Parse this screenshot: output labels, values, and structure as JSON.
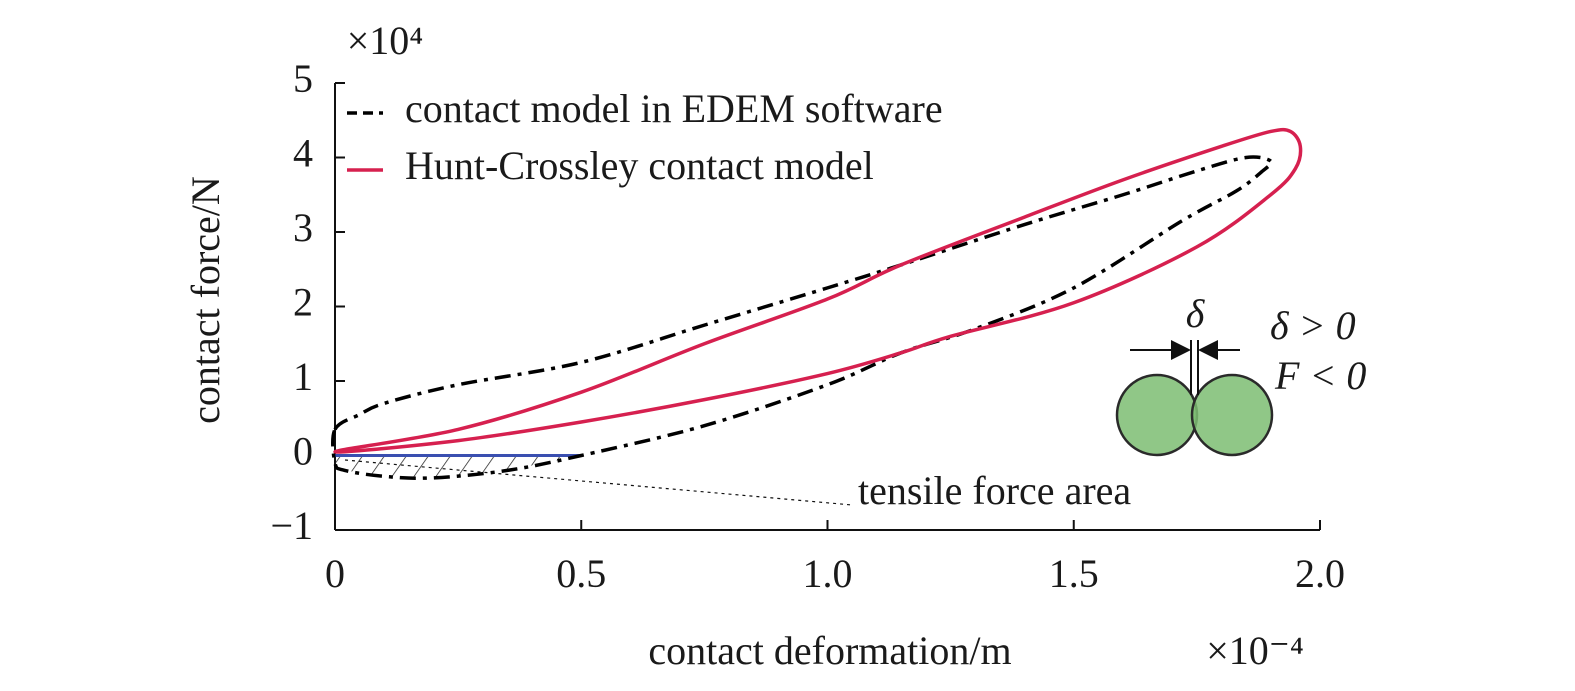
{
  "chart_data": {
    "type": "line",
    "x_label": "contact deformation/m",
    "y_label": "contact force/N",
    "x_multiplier": "×10⁻⁴",
    "y_multiplier": "×10⁴",
    "xlim": [
      0,
      2
    ],
    "ylim": [
      -1,
      5
    ],
    "xticks": [
      0,
      0.5,
      {
        "value": 1,
        "label": "1.0"
      },
      1.5,
      {
        "value": 2,
        "label": "2.0"
      }
    ],
    "yticks": [
      {
        "value": -1,
        "label": "−1"
      },
      0,
      1,
      2,
      3,
      4,
      5
    ],
    "grid": false,
    "legend": "top-left",
    "series": [
      {
        "name": "contact model in EDEM software",
        "color": "#000000",
        "style": "dashdot",
        "x": [
          0,
          0.05,
          0.1,
          0.25,
          0.5,
          0.75,
          1.0,
          1.15,
          1.4,
          1.6,
          1.75,
          1.85,
          1.9,
          1.88,
          1.83,
          1.72,
          1.5,
          1.3,
          1.15,
          1.0,
          0.75,
          0.5,
          0.35,
          0.2,
          0.1,
          0.02,
          0
        ],
        "values": [
          0.35,
          0.55,
          0.7,
          0.95,
          1.25,
          1.75,
          2.25,
          2.56,
          3.1,
          3.5,
          3.82,
          4.0,
          3.95,
          3.8,
          3.55,
          3.15,
          2.25,
          1.7,
          1.38,
          0.95,
          0.4,
          0.0,
          -0.2,
          -0.3,
          -0.28,
          -0.2,
          -0.1
        ]
      },
      {
        "name": "Hunt-Crossley contact model",
        "color": "#d6204f",
        "style": "solid",
        "x": [
          0,
          0.25,
          0.5,
          0.75,
          1.0,
          1.15,
          1.4,
          1.6,
          1.8,
          1.9,
          1.94,
          1.96,
          1.95,
          1.9,
          1.75,
          1.5,
          1.25,
          1.15,
          1.0,
          0.75,
          0.5,
          0.25
        ],
        "values": [
          0.05,
          0.35,
          0.85,
          1.5,
          2.1,
          2.56,
          3.2,
          3.7,
          4.15,
          4.35,
          4.35,
          4.15,
          3.85,
          3.5,
          2.8,
          2.05,
          1.6,
          1.38,
          1.1,
          0.75,
          0.45,
          0.2
        ]
      }
    ],
    "annotations": [
      {
        "text": "tensile force area"
      },
      {
        "text": "δ"
      },
      {
        "text": "δ > 0"
      },
      {
        "text": "F < 0"
      }
    ]
  }
}
